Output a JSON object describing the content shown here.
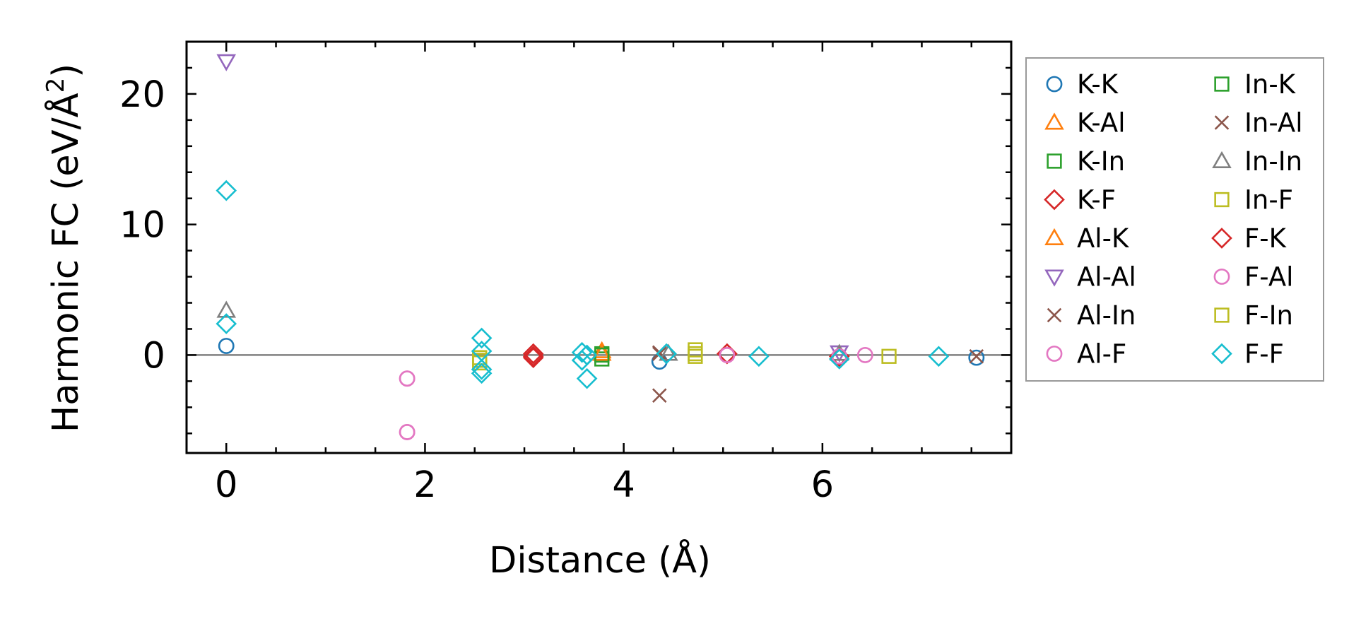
{
  "chart_data": {
    "type": "scatter",
    "title": "",
    "xlabel": "Distance (Å)",
    "ylabel_prefix": "Harmonic FC (eV/Å",
    "ylabel_sup": "2",
    "ylabel_suffix": ")",
    "xlim": [
      -0.4,
      7.9
    ],
    "ylim": [
      -7.5,
      24
    ],
    "xticks": [
      0,
      2,
      4,
      6
    ],
    "xtick_labels": [
      "0",
      "2",
      "4",
      "6"
    ],
    "yticks": [
      0,
      10,
      20
    ],
    "ytick_labels": [
      "0",
      "10",
      "20"
    ],
    "xminor_step": 0.5,
    "yminor_step": 2,
    "reference_line_y": 0,
    "grid": false,
    "legend_position": "outside-right",
    "series": [
      {
        "name": "K-K",
        "marker": "circle",
        "color": "#1f77b4",
        "x": [
          0,
          4.36,
          7.55
        ],
        "y": [
          0.7,
          -0.5,
          -0.2
        ]
      },
      {
        "name": "K-Al",
        "marker": "triangle-up",
        "color": "#ff7f0e",
        "x": [
          3.78
        ],
        "y": [
          0.3
        ]
      },
      {
        "name": "K-In",
        "marker": "square",
        "color": "#2ca02c",
        "x": [
          3.78,
          3.78
        ],
        "y": [
          0.1,
          -0.3
        ]
      },
      {
        "name": "K-F",
        "marker": "diamond",
        "color": "#d62728",
        "x": [
          3.09,
          3.09,
          5.04,
          6.17
        ],
        "y": [
          0.1,
          -0.2,
          0.1,
          -0.1
        ]
      },
      {
        "name": "Al-K",
        "marker": "triangle-up",
        "color": "#ff7f0e",
        "x": [
          3.78
        ],
        "y": [
          0.1
        ]
      },
      {
        "name": "Al-Al",
        "marker": "triangle-down",
        "color": "#9467bd",
        "x": [
          0,
          6.17
        ],
        "y": [
          22.5,
          0.2
        ]
      },
      {
        "name": "Al-In",
        "marker": "x",
        "color": "#8c564b",
        "x": [
          4.36,
          4.36,
          7.55
        ],
        "y": [
          -3.1,
          0.2,
          -0.1
        ]
      },
      {
        "name": "Al-F",
        "marker": "circle",
        "color": "#e377c2",
        "x": [
          1.82,
          1.82,
          5.04
        ],
        "y": [
          -1.8,
          -5.9,
          0.0
        ]
      },
      {
        "name": "In-K",
        "marker": "square",
        "color": "#2ca02c",
        "x": [
          3.78
        ],
        "y": [
          0.0
        ]
      },
      {
        "name": "In-Al",
        "marker": "x",
        "color": "#8c564b",
        "x": [
          4.36
        ],
        "y": [
          0.1
        ]
      },
      {
        "name": "In-In",
        "marker": "triangle-up",
        "color": "#7f7f7f",
        "x": [
          0,
          4.45,
          6.17
        ],
        "y": [
          3.4,
          0.1,
          0.1
        ]
      },
      {
        "name": "In-F",
        "marker": "square",
        "color": "#bcbd22",
        "x": [
          2.55,
          2.55,
          4.72,
          4.72
        ],
        "y": [
          -0.2,
          -0.6,
          -0.1,
          0.4
        ]
      },
      {
        "name": "F-K",
        "marker": "diamond",
        "color": "#d62728",
        "x": [
          3.09,
          5.04
        ],
        "y": [
          -0.1,
          0.1
        ]
      },
      {
        "name": "F-Al",
        "marker": "circle",
        "color": "#e377c2",
        "x": [
          1.82,
          1.82,
          5.04,
          6.17,
          6.43
        ],
        "y": [
          -1.8,
          -5.9,
          0.0,
          -0.1,
          0.0
        ]
      },
      {
        "name": "F-In",
        "marker": "square",
        "color": "#bcbd22",
        "x": [
          2.55,
          4.72,
          6.67
        ],
        "y": [
          -0.4,
          0.1,
          -0.1
        ]
      },
      {
        "name": "F-F",
        "marker": "diamond",
        "color": "#17becf",
        "x": [
          0,
          0,
          2.57,
          2.57,
          2.57,
          2.57,
          3.58,
          3.58,
          3.63,
          3.63,
          4.43,
          5.36,
          6.17,
          7.17
        ],
        "y": [
          12.6,
          2.4,
          1.3,
          0.3,
          -1.1,
          -1.4,
          0.2,
          -0.4,
          0.0,
          -1.8,
          0.1,
          -0.1,
          -0.3,
          -0.1
        ]
      }
    ]
  }
}
